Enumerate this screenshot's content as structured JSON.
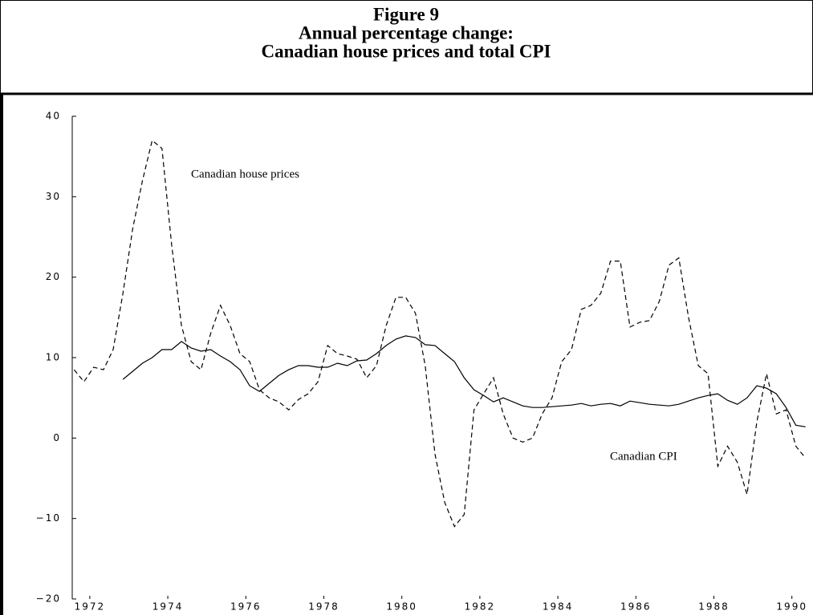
{
  "chart_data": {
    "type": "line",
    "title_lines": [
      "Figure 9",
      "Annual percentage change:",
      "Canadian house prices and total CPI"
    ],
    "annotations": [
      {
        "text": "Canadian house prices",
        "series": 0
      },
      {
        "text": "Canadian CPI",
        "series": 1
      }
    ],
    "x": [
      1971.6,
      1971.85,
      1972.1,
      1972.35,
      1972.6,
      1972.85,
      1973.1,
      1973.35,
      1973.6,
      1973.85,
      1974.1,
      1974.35,
      1974.6,
      1974.85,
      1975.1,
      1975.35,
      1975.6,
      1975.85,
      1976.1,
      1976.35,
      1976.6,
      1976.85,
      1977.1,
      1977.35,
      1977.6,
      1977.85,
      1978.1,
      1978.35,
      1978.6,
      1978.85,
      1979.1,
      1979.35,
      1979.6,
      1979.85,
      1980.1,
      1980.35,
      1980.6,
      1980.85,
      1981.1,
      1981.35,
      1981.6,
      1981.85,
      1982.1,
      1982.35,
      1982.6,
      1982.85,
      1983.1,
      1983.35,
      1983.6,
      1983.85,
      1984.1,
      1984.35,
      1984.6,
      1984.85,
      1985.1,
      1985.35,
      1985.6,
      1985.85,
      1986.1,
      1986.35,
      1986.6,
      1986.85,
      1987.1,
      1987.35,
      1987.6,
      1987.85,
      1988.1,
      1988.35,
      1988.6,
      1988.85,
      1989.1,
      1989.35,
      1989.6,
      1989.85,
      1990.1,
      1990.35
    ],
    "series": [
      {
        "name": "Canadian house prices",
        "color": "#000000",
        "dashed": true,
        "values": [
          8.5,
          7,
          8.8,
          8.5,
          11,
          18,
          26,
          32,
          37,
          36,
          24,
          14,
          9.5,
          8.5,
          13,
          16.5,
          14,
          10.5,
          9.5,
          6,
          5,
          4.5,
          3.5,
          4.8,
          5.5,
          7,
          11.5,
          10.5,
          10.2,
          9.8,
          7.5,
          9,
          14,
          17.5,
          17.5,
          15.5,
          9,
          -2,
          -8,
          -11,
          -9.5,
          3.5,
          5.5,
          7.5,
          3,
          0,
          -0.5,
          0,
          3,
          5,
          9.5,
          11,
          16,
          16.5,
          18,
          22,
          22,
          13.8,
          14.4,
          14.6,
          17,
          21.5,
          22.4,
          15,
          9,
          8,
          -3.5,
          -1,
          -3,
          -7,
          2,
          8,
          3,
          3.5,
          -1,
          -2.5
        ]
      },
      {
        "name": "Canadian CPI",
        "color": "#000000",
        "dashed": false,
        "values": [
          null,
          null,
          null,
          null,
          null,
          7.3,
          8.3,
          9.3,
          10,
          11,
          11,
          12,
          11.2,
          10.8,
          11,
          10.2,
          9.5,
          8.5,
          6.5,
          5.8,
          6.8,
          7.8,
          8.5,
          9,
          9,
          8.8,
          8.8,
          9.3,
          9,
          9.6,
          9.7,
          10.5,
          11.5,
          12.3,
          12.7,
          12.5,
          11.6,
          11.5,
          10.5,
          9.5,
          7.5,
          6,
          5.3,
          4.5,
          5,
          4.5,
          4,
          3.8,
          3.8,
          3.9,
          4,
          4.1,
          4.3,
          4,
          4.2,
          4.3,
          4,
          4.6,
          4.4,
          4.2,
          4.1,
          4,
          4.2,
          4.6,
          5,
          5.3,
          5.5,
          4.7,
          4.2,
          5,
          6.5,
          6.2,
          5.5,
          3.8,
          1.6,
          1.4
        ]
      }
    ],
    "xlim": [
      1971.55,
      1990.5
    ],
    "xticks": [
      1972,
      1974,
      1976,
      1978,
      1980,
      1982,
      1984,
      1986,
      1988,
      1990
    ],
    "ylim": [
      -20,
      40
    ],
    "yticks": [
      {
        "value": -20,
        "label": "−20"
      },
      {
        "value": -10,
        "label": "−10"
      },
      0,
      10,
      20,
      30,
      40
    ],
    "grid": false
  }
}
